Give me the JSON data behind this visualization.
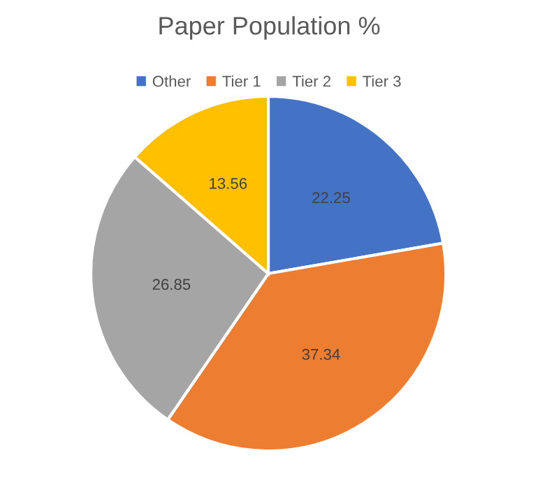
{
  "chart_data": {
    "type": "pie",
    "title": "Paper Population %",
    "categories": [
      "Other",
      "Tier 1",
      "Tier 2",
      "Tier 3"
    ],
    "values": [
      22.25,
      37.34,
      26.85,
      13.56
    ],
    "colors": [
      "#4472c4",
      "#ed7d31",
      "#a5a5a5",
      "#ffc000"
    ],
    "data_labels": true,
    "legend": "top"
  }
}
